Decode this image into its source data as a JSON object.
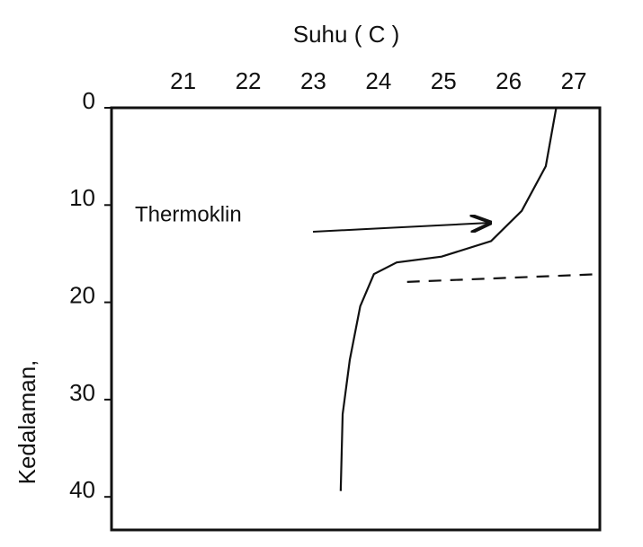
{
  "chart_data": {
    "type": "line",
    "x_label": "Suhu ( C )",
    "y_label": "Kedalaman,",
    "annotation": "Thermoklin",
    "xlim": [
      19.9,
      27.4
    ],
    "xticks": [
      21,
      22,
      23,
      24,
      25,
      26,
      27
    ],
    "ylim": [
      0,
      43.4
    ],
    "yticks": [
      0,
      10,
      20,
      30,
      40
    ],
    "y_inverted": true,
    "x_axis_top": true,
    "series": [
      {
        "color": "#111111",
        "dashed": false,
        "x": [
          26.73,
          26.57,
          26.2,
          25.73,
          24.97,
          24.28,
          23.93,
          23.72,
          23.56,
          23.45,
          23.42
        ],
        "values": [
          0,
          6.0,
          10.6,
          13.7,
          15.3,
          15.9,
          17.1,
          20.4,
          25.9,
          31.5,
          39.4
        ]
      },
      {
        "color": "#111111",
        "dashed": true,
        "x": [
          24.44,
          27.4
        ],
        "values": [
          17.9,
          17.1
        ]
      }
    ]
  }
}
